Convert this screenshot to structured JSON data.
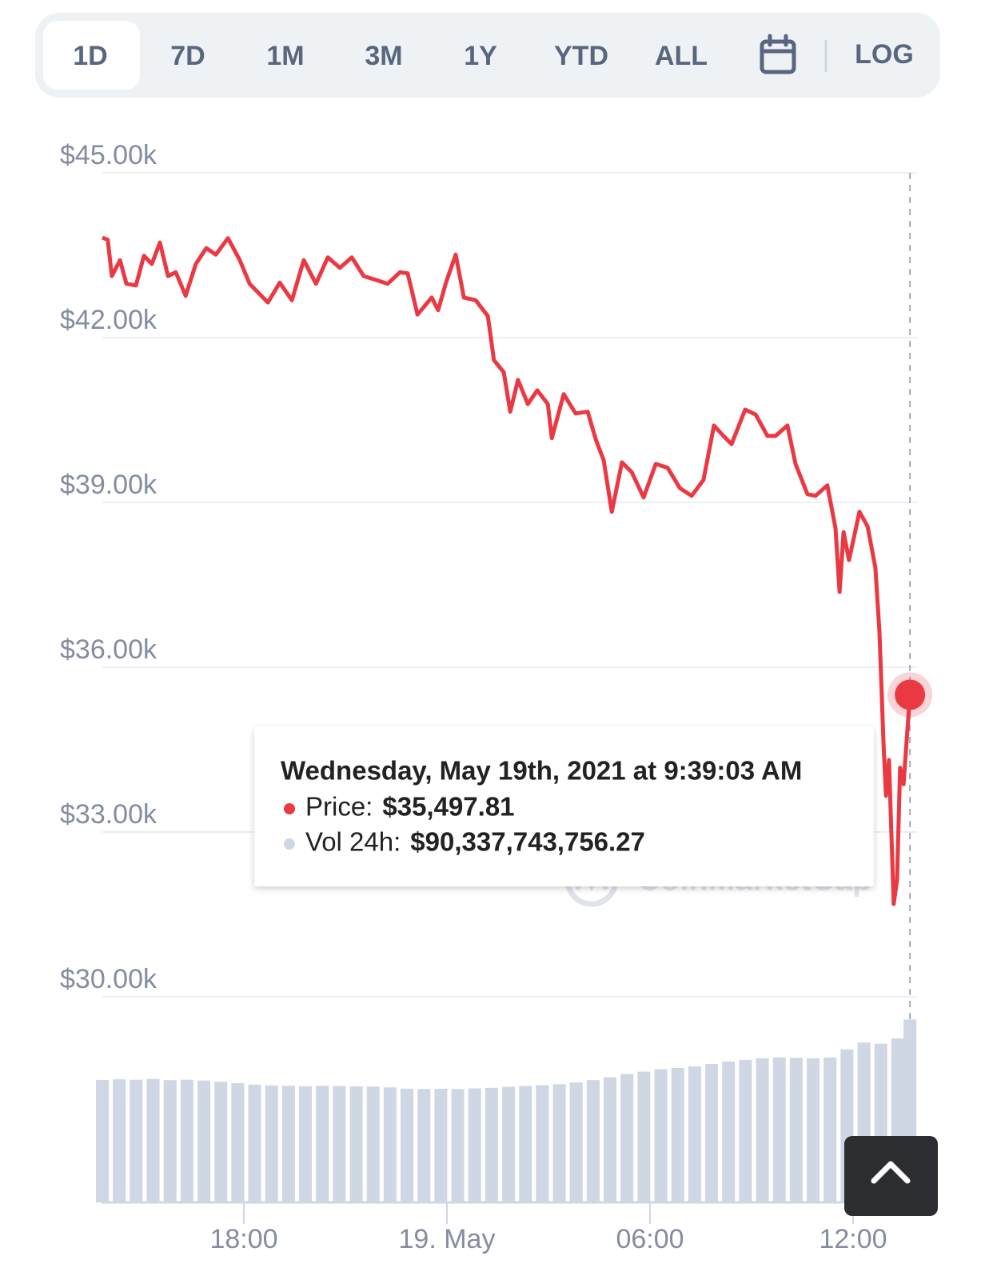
{
  "toolbar": {
    "tabs": [
      "1D",
      "7D",
      "1M",
      "3M",
      "1Y",
      "YTD",
      "ALL"
    ],
    "selected_index": 0,
    "log_label": "LOG"
  },
  "chart_data": {
    "type": "line",
    "color": "#ea3943",
    "x": [
      13.82,
      13.98,
      14.1,
      14.34,
      14.53,
      14.81,
      15.05,
      15.28,
      15.52,
      15.76,
      15.99,
      16.28,
      16.58,
      16.89,
      17.17,
      17.53,
      17.88,
      18.17,
      18.47,
      18.71,
      19.06,
      19.42,
      19.77,
      20.13,
      20.48,
      20.84,
      21.19,
      21.54,
      21.9,
      22.25,
      22.61,
      22.84,
      23.13,
      23.55,
      23.74,
      23.98,
      24.26,
      24.5,
      24.85,
      25.21,
      25.39,
      25.68,
      25.87,
      26.1,
      26.39,
      26.67,
      26.98,
      27.1,
      27.45,
      27.8,
      28.16,
      28.4,
      28.63,
      28.87,
      29.17,
      29.46,
      29.81,
      30.17,
      30.52,
      30.88,
      31.23,
      31.58,
      31.89,
      32.17,
      32.41,
      32.81,
      33.12,
      33.47,
      33.71,
      34.06,
      34.3,
      34.65,
      34.89,
      35.24,
      35.48,
      35.6,
      35.72,
      35.88,
      36.19,
      36.43,
      36.66,
      36.78,
      36.9,
      36.97,
      37.06,
      37.2,
      37.3,
      37.39,
      37.49,
      37.68
    ],
    "values": [
      43820,
      43780,
      43120,
      43410,
      42980,
      42950,
      43490,
      43340,
      43730,
      43120,
      43190,
      42760,
      43340,
      43630,
      43510,
      43810,
      43410,
      42980,
      42790,
      42640,
      43000,
      42680,
      43410,
      42980,
      43460,
      43270,
      43460,
      43120,
      43050,
      42980,
      43190,
      43170,
      42420,
      42730,
      42500,
      43020,
      43510,
      42730,
      42680,
      42390,
      41590,
      41370,
      40650,
      41230,
      40790,
      41040,
      40790,
      40170,
      40970,
      40620,
      40650,
      40140,
      39770,
      38830,
      39730,
      39550,
      39090,
      39700,
      39630,
      39260,
      39120,
      39410,
      40400,
      40210,
      40060,
      40690,
      40600,
      40210,
      40210,
      40400,
      39700,
      39150,
      39120,
      39310,
      38530,
      37370,
      38460,
      37950,
      38830,
      38560,
      37810,
      36640,
      34600,
      33660,
      34310,
      31690,
      32130,
      34170,
      33870,
      35497.81
    ],
    "xlim": [
      13.8,
      37.8
    ],
    "ylim": [
      30000,
      45000
    ],
    "yticks": [
      {
        "value": 45000,
        "label": "$45.00k"
      },
      {
        "value": 42000,
        "label": "$42.00k"
      },
      {
        "value": 39000,
        "label": "$39.00k"
      },
      {
        "value": 36000,
        "label": "$36.00k"
      },
      {
        "value": 33000,
        "label": "$33.00k"
      },
      {
        "value": 30000,
        "label": "$30.00k"
      }
    ],
    "xticks": [
      {
        "value": 18,
        "label": "18:00"
      },
      {
        "value": 24,
        "label": "19. May"
      },
      {
        "value": 30,
        "label": "06:00"
      },
      {
        "value": 36,
        "label": "12:00"
      }
    ],
    "grid": true,
    "volume": {
      "color": "#cfd6e4",
      "ylim": [
        0,
        100000000000
      ],
      "x": [
        13.82,
        14.32,
        14.82,
        15.32,
        15.82,
        16.32,
        16.82,
        17.32,
        17.82,
        18.32,
        18.82,
        19.32,
        19.82,
        20.32,
        20.82,
        21.32,
        21.82,
        22.32,
        22.82,
        23.32,
        23.82,
        24.32,
        24.82,
        25.32,
        25.82,
        26.32,
        26.82,
        27.32,
        27.82,
        28.32,
        28.82,
        29.32,
        29.82,
        30.32,
        30.82,
        31.32,
        31.82,
        32.32,
        32.82,
        33.32,
        33.82,
        34.32,
        34.82,
        35.32,
        35.82,
        36.32,
        36.82,
        37.32,
        37.68
      ],
      "values": [
        60500000000,
        60800000000,
        60600000000,
        61000000000,
        60400000000,
        60600000000,
        60200000000,
        59600000000,
        58900000000,
        58200000000,
        57800000000,
        57600000000,
        57400000000,
        57600000000,
        57500000000,
        57300000000,
        57200000000,
        56800000000,
        56200000000,
        56000000000,
        56100000000,
        56000000000,
        56300000000,
        56600000000,
        57100000000,
        57500000000,
        57900000000,
        58400000000,
        59300000000,
        60400000000,
        61800000000,
        63400000000,
        64600000000,
        65800000000,
        66400000000,
        67200000000,
        68400000000,
        69600000000,
        70400000000,
        71200000000,
        71600000000,
        71400000000,
        71200000000,
        71600000000,
        75600000000,
        79000000000,
        78400000000,
        81000000000,
        90337743756.27
      ]
    },
    "tooltip": {
      "date": "Wednesday, May 19th, 2021 at 9:39:03 AM",
      "price_label": "Price:",
      "price_value": "$35,497.81",
      "volume_label": "Vol 24h:",
      "volume_value": "$90,337,743,756.27"
    },
    "watermark": "CoinMarketCap"
  }
}
